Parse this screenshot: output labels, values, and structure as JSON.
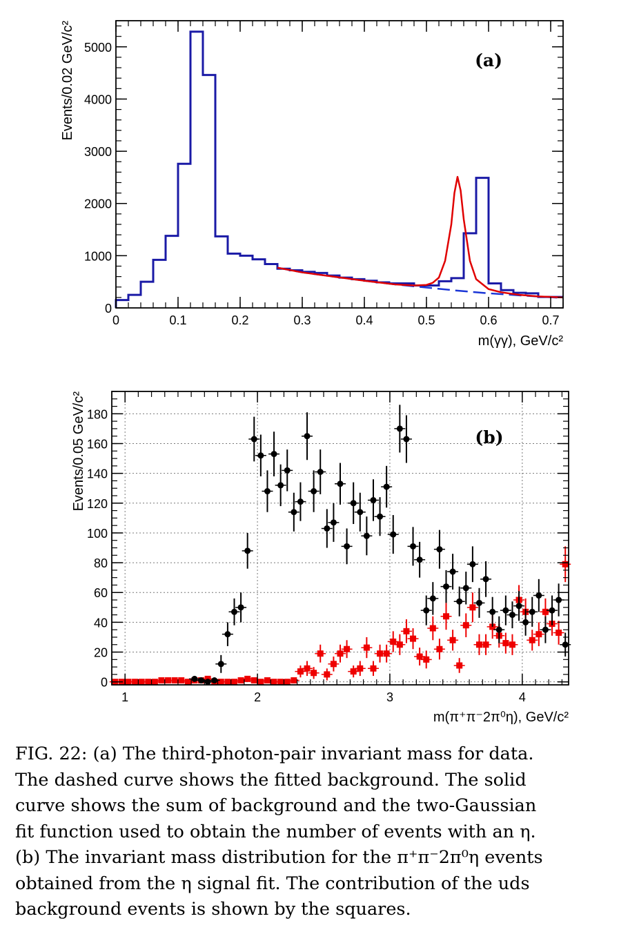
{
  "figure": {
    "caption_lines": [
      "FIG. 22: (a) The third-photon-pair invariant mass for data.",
      "The dashed curve shows the fitted background.  The solid",
      "curve shows the sum of background and the two-Gaussian",
      "fit function used to obtain the number of events with an η.",
      "(b) The invariant mass distribution for the π⁺π⁻2π⁰η events",
      "obtained from the η signal fit.  The contribution of the uds",
      "background events is shown by the squares."
    ]
  },
  "chart_data": [
    {
      "panel": "(a)",
      "type": "histogram",
      "xlabel": "m(γγ), GeV/c²",
      "ylabel": "Events/0.02 GeV/c²",
      "xlim": [
        0,
        0.72
      ],
      "ylim": [
        0,
        5500
      ],
      "xticks": [
        0,
        0.1,
        0.2,
        0.3,
        0.4,
        0.5,
        0.6,
        0.7
      ],
      "xtick_labels": [
        "0",
        "0.1",
        "0.2",
        "0.3",
        "0.4",
        "0.5",
        "0.6",
        "0.7"
      ],
      "yticks": [
        0,
        1000,
        2000,
        3000,
        4000,
        5000
      ],
      "ytick_labels": [
        "0",
        "1000",
        "2000",
        "3000",
        "4000",
        "5000"
      ],
      "bin_width": 0.02,
      "bin_start": 0,
      "histogram": [
        150,
        250,
        500,
        920,
        1380,
        2760,
        5290,
        4460,
        1370,
        1040,
        1000,
        930,
        840,
        750,
        720,
        690,
        670,
        620,
        580,
        550,
        520,
        490,
        470,
        470,
        430,
        430,
        510,
        570,
        1430,
        2490,
        470,
        340,
        290,
        280,
        210,
        210
      ],
      "histogram_color": "#1a1aa6",
      "background_fit": {
        "style": "dashed",
        "color": "#1a35d6",
        "x": [
          0.26,
          0.3,
          0.35,
          0.4,
          0.45,
          0.5,
          0.55,
          0.6,
          0.65,
          0.72
        ],
        "y": [
          770,
          680,
          600,
          520,
          450,
          390,
          330,
          280,
          240,
          190
        ]
      },
      "total_fit": {
        "style": "solid",
        "color": "#e00000",
        "x": [
          0.26,
          0.3,
          0.35,
          0.4,
          0.45,
          0.48,
          0.5,
          0.51,
          0.52,
          0.53,
          0.54,
          0.545,
          0.55,
          0.555,
          0.56,
          0.57,
          0.58,
          0.6,
          0.62,
          0.65,
          0.68,
          0.72
        ],
        "y": [
          770,
          680,
          600,
          520,
          450,
          430,
          440,
          480,
          580,
          900,
          1600,
          2200,
          2510,
          2250,
          1700,
          900,
          550,
          360,
          300,
          250,
          220,
          200
        ]
      }
    },
    {
      "panel": "(b)",
      "type": "scatter",
      "xlabel": "m(π⁺π⁻2π⁰η), GeV/c²",
      "ylabel": "Events/0.05 GeV/c²",
      "xlim": [
        0.9,
        4.35
      ],
      "ylim": [
        -2,
        195
      ],
      "xticks": [
        1,
        2,
        3,
        4
      ],
      "xtick_labels": [
        "1",
        "2",
        "3",
        "4"
      ],
      "yticks": [
        0,
        20,
        40,
        60,
        80,
        100,
        120,
        140,
        160,
        180
      ],
      "ytick_labels": [
        "0",
        "20",
        "40",
        "60",
        "80",
        "100",
        "120",
        "140",
        "160",
        "180"
      ],
      "grid": true,
      "series": [
        {
          "marker": "circle",
          "color": "#000000",
          "x": [
            1.525,
            1.575,
            1.625,
            1.675,
            1.725,
            1.775,
            1.825,
            1.875,
            1.925,
            1.975,
            2.025,
            2.075,
            2.125,
            2.175,
            2.225,
            2.275,
            2.325,
            2.375,
            2.425,
            2.475,
            2.525,
            2.575,
            2.625,
            2.675,
            2.725,
            2.775,
            2.825,
            2.875,
            2.925,
            2.975,
            3.025,
            3.075,
            3.125,
            3.175,
            3.225,
            3.275,
            3.325,
            3.375,
            3.425,
            3.475,
            3.525,
            3.575,
            3.625,
            3.675,
            3.725,
            3.775,
            3.825,
            3.875,
            3.925,
            3.975,
            4.025,
            4.075,
            4.125,
            4.175,
            4.225,
            4.275,
            4.325
          ],
          "y": [
            2,
            1,
            0,
            1,
            12,
            32,
            47,
            50,
            88,
            163,
            152,
            128,
            153,
            132,
            142,
            114,
            121,
            165,
            128,
            141,
            103,
            107,
            133,
            91,
            120,
            114,
            98,
            122,
            111,
            131,
            99,
            170,
            163,
            91,
            82,
            48,
            56,
            89,
            64,
            74,
            54,
            63,
            79,
            53,
            69,
            47,
            35,
            48,
            45,
            51,
            40,
            47,
            58,
            35,
            48,
            55,
            25
          ],
          "err": [
            1.5,
            1,
            0.5,
            1,
            6,
            8,
            9,
            10,
            12,
            15,
            14,
            14,
            15,
            14,
            14,
            13,
            13,
            16,
            14,
            15,
            13,
            13,
            14,
            12,
            14,
            13,
            13,
            14,
            13,
            14,
            13,
            16,
            16,
            13,
            12,
            10,
            11,
            13,
            11,
            12,
            10,
            11,
            12,
            10,
            12,
            10,
            9,
            10,
            9,
            10,
            9,
            10,
            11,
            9,
            10,
            11,
            8
          ]
        },
        {
          "marker": "square",
          "color": "#ee0000",
          "x": [
            0.925,
            0.975,
            1.025,
            1.075,
            1.125,
            1.175,
            1.225,
            1.275,
            1.325,
            1.375,
            1.425,
            1.475,
            1.525,
            1.575,
            1.625,
            1.675,
            1.725,
            1.775,
            1.825,
            1.875,
            1.925,
            1.975,
            2.025,
            2.075,
            2.125,
            2.175,
            2.225,
            2.275,
            2.325,
            2.375,
            2.425,
            2.475,
            2.525,
            2.575,
            2.625,
            2.675,
            2.725,
            2.775,
            2.825,
            2.875,
            2.925,
            2.975,
            3.025,
            3.075,
            3.125,
            3.175,
            3.225,
            3.275,
            3.325,
            3.375,
            3.425,
            3.475,
            3.525,
            3.575,
            3.625,
            3.675,
            3.725,
            3.775,
            3.825,
            3.875,
            3.925,
            3.975,
            4.025,
            4.075,
            4.125,
            4.175,
            4.225,
            4.275,
            4.325
          ],
          "y": [
            0,
            0,
            0,
            0,
            0,
            0,
            0,
            1,
            1,
            1,
            1,
            0,
            1,
            1,
            2,
            0,
            0,
            0,
            0,
            1,
            2,
            1,
            0,
            1,
            0,
            0,
            0,
            1,
            7,
            9,
            6,
            19,
            5,
            12,
            19,
            22,
            7,
            9,
            23,
            9,
            19,
            19,
            27,
            25,
            34,
            29,
            17,
            15,
            36,
            22,
            44,
            28,
            11,
            38,
            50,
            25,
            25,
            37,
            31,
            26,
            25,
            55,
            47,
            28,
            32,
            47,
            39,
            33,
            79
          ],
          "err": [
            0.5,
            0.5,
            0.5,
            0.5,
            0.5,
            0.5,
            0.5,
            1,
            1,
            1,
            1,
            0.5,
            1,
            1,
            1.5,
            0.5,
            0.5,
            0.5,
            0.5,
            1,
            1.5,
            1,
            0.5,
            1,
            0.5,
            0.5,
            0.5,
            1,
            4,
            5,
            4,
            6,
            4,
            5,
            6,
            6,
            4,
            5,
            7,
            5,
            6,
            6,
            7,
            7,
            8,
            7,
            6,
            6,
            8,
            7,
            9,
            7,
            5,
            8,
            10,
            7,
            7,
            8,
            8,
            7,
            7,
            10,
            9,
            7,
            8,
            9,
            8,
            8,
            12
          ]
        }
      ]
    }
  ]
}
